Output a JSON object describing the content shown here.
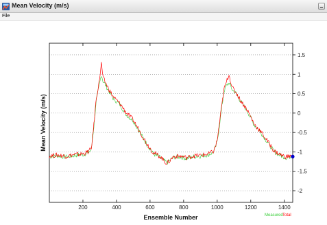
{
  "window": {
    "title": "Mean Velocity (m/s)",
    "icon": "matlab-figure-icon",
    "minimize_icon": "minimize-icon"
  },
  "menu": {
    "items": [
      {
        "label": "File"
      }
    ]
  },
  "chart_data": {
    "type": "line",
    "title": "",
    "xlabel": "Ensemble Number",
    "ylabel": "Mean Velocity (m/s)",
    "xlim": [
      0,
      1450
    ],
    "ylim": [
      -2.3,
      1.8
    ],
    "xticks": [
      200,
      400,
      600,
      800,
      1000,
      1200,
      1400
    ],
    "yticks": [
      1.5,
      1,
      0.5,
      0,
      -0.5,
      -1,
      -1.5,
      -2
    ],
    "y_axis_side": "right",
    "grid": "horizontal dotted",
    "legend": {
      "placement": "bottom-right",
      "entries": [
        {
          "label": "Measured",
          "color": "#33cc33"
        },
        {
          "label": "Total",
          "color": "#ff0000"
        }
      ]
    },
    "series": [
      {
        "name": "Measured",
        "color": "#33cc33",
        "x": [
          0,
          50,
          100,
          150,
          200,
          230,
          250,
          265,
          280,
          295,
          310,
          320,
          335,
          350,
          380,
          420,
          460,
          500,
          540,
          580,
          620,
          660,
          700,
          740,
          780,
          820,
          860,
          900,
          950,
          980,
          1000,
          1020,
          1040,
          1055,
          1070,
          1090,
          1110,
          1140,
          1180,
          1220,
          1260,
          1300,
          1340,
          1380,
          1410,
          1440
        ],
        "values": [
          -1.12,
          -1.1,
          -1.13,
          -1.09,
          -1.07,
          -1.02,
          -0.95,
          -0.35,
          0.35,
          0.65,
          1.0,
          0.82,
          0.72,
          0.6,
          0.38,
          0.22,
          -0.05,
          -0.2,
          -0.5,
          -0.8,
          -1.05,
          -1.15,
          -1.28,
          -1.14,
          -1.13,
          -1.17,
          -1.12,
          -1.11,
          -1.07,
          -1.0,
          -0.75,
          -0.1,
          0.55,
          0.7,
          0.78,
          0.6,
          0.52,
          0.3,
          0.05,
          -0.3,
          -0.5,
          -0.75,
          -1.0,
          -1.1,
          -1.15,
          -1.12
        ]
      },
      {
        "name": "Total",
        "color": "#ff0000",
        "x": [
          0,
          50,
          100,
          150,
          200,
          230,
          250,
          265,
          280,
          295,
          310,
          320,
          335,
          350,
          380,
          420,
          460,
          500,
          540,
          580,
          620,
          660,
          700,
          740,
          780,
          820,
          860,
          900,
          950,
          980,
          1000,
          1020,
          1040,
          1055,
          1070,
          1090,
          1110,
          1140,
          1180,
          1220,
          1260,
          1300,
          1340,
          1380,
          1410,
          1440
        ],
        "values": [
          -1.1,
          -1.08,
          -1.11,
          -1.07,
          -1.05,
          -1.0,
          -0.92,
          -0.3,
          0.4,
          0.75,
          1.28,
          0.9,
          0.78,
          0.65,
          0.42,
          0.25,
          0.0,
          -0.18,
          -0.48,
          -0.78,
          -1.02,
          -1.12,
          -1.3,
          -1.12,
          -1.11,
          -1.15,
          -1.1,
          -1.09,
          -1.05,
          -0.98,
          -0.7,
          -0.05,
          0.6,
          0.8,
          1.0,
          0.65,
          0.55,
          0.32,
          0.08,
          -0.28,
          -0.48,
          -0.72,
          -0.98,
          -1.08,
          -1.13,
          -1.1
        ]
      }
    ],
    "end_marker": {
      "x": 1450,
      "y": -1.12,
      "color": "#0000cc"
    }
  }
}
